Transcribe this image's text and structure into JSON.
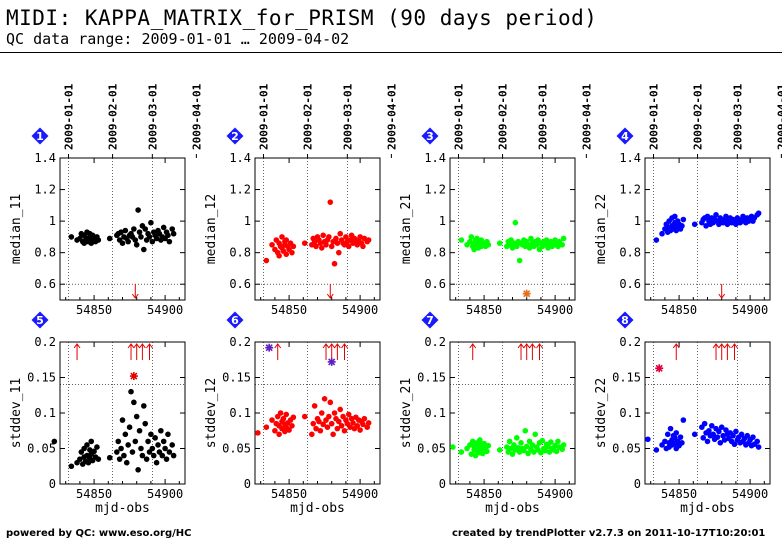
{
  "header": {
    "title": "MIDI: KAPPA_MATRIX_for_PRISM (90 days period)",
    "subtitle": "QC data range: 2009-01-01 … 2009-04-02"
  },
  "footer": {
    "left": "powered by QC: www.eso.org/HC",
    "right": "created by trendPlotter v2.7.3 on 2011-10-17T10:20:01"
  },
  "colors": {
    "black": "#000000",
    "red": "#ff0000",
    "green": "#00ff00",
    "blue": "#0000ff",
    "badge": "#1a1aff",
    "marker_red": "#e00000"
  },
  "chart_data": [
    {
      "type": "scatter",
      "panel": 1,
      "ylabel": "median_11",
      "color": "#000000",
      "ylim": [
        0.5,
        1.4
      ],
      "yticks": [
        0.6,
        0.8,
        1,
        1.2,
        1.4
      ],
      "hline": 0.6,
      "xticks": [
        54850,
        54900
      ],
      "date_ticks": [
        "2009-01-01",
        "2009-02-01",
        "2009-03-01",
        "2009-04-01"
      ],
      "x": [
        54834,
        54838,
        54840,
        54841,
        54842,
        54843,
        54843,
        54844,
        54845,
        54845,
        54846,
        54847,
        54847,
        54848,
        54848,
        54849,
        54850,
        54851,
        54852,
        54853,
        54861,
        54866,
        54867,
        54868,
        54869,
        54870,
        54871,
        54872,
        54873,
        54874,
        54875,
        54876,
        54877,
        54878,
        54879,
        54880,
        54881,
        54882,
        54883,
        54884,
        54885,
        54886,
        54887,
        54888,
        54889,
        54890,
        54891,
        54892,
        54893,
        54894,
        54895,
        54896,
        54897,
        54898,
        54899,
        54900,
        54901,
        54902,
        54903,
        54905,
        54906
      ],
      "y": [
        0.9,
        0.88,
        0.89,
        0.92,
        0.87,
        0.91,
        0.86,
        0.88,
        0.93,
        0.89,
        0.87,
        0.9,
        0.92,
        0.88,
        0.86,
        0.91,
        0.89,
        0.87,
        0.9,
        0.88,
        0.89,
        0.91,
        0.92,
        0.88,
        0.93,
        0.86,
        0.9,
        0.94,
        0.89,
        0.87,
        0.91,
        0.92,
        0.9,
        0.95,
        0.88,
        0.85,
        1.07,
        0.93,
        0.9,
        0.97,
        0.82,
        0.95,
        0.88,
        0.92,
        0.9,
        0.99,
        0.87,
        0.93,
        0.91,
        0.89,
        0.94,
        0.92,
        0.88,
        0.9,
        0.96,
        0.89,
        0.93,
        0.91,
        0.87,
        0.95,
        0.92
      ],
      "outliers_low": [
        54879
      ],
      "outlier_points": []
    },
    {
      "type": "scatter",
      "panel": 2,
      "ylabel": "median_12",
      "color": "#ff0000",
      "ylim": [
        0.5,
        1.4
      ],
      "yticks": [
        0.6,
        0.8,
        1,
        1.2,
        1.4
      ],
      "hline": 0.6,
      "xticks": [
        54850,
        54900
      ],
      "date_ticks": [
        "2009-01-01",
        "2009-02-01",
        "2009-03-01",
        "2009-04-01"
      ],
      "x": [
        54834,
        54838,
        54840,
        54841,
        54842,
        54843,
        54843,
        54844,
        54845,
        54845,
        54846,
        54847,
        54847,
        54848,
        54848,
        54849,
        54850,
        54851,
        54852,
        54853,
        54861,
        54866,
        54867,
        54868,
        54869,
        54870,
        54871,
        54872,
        54873,
        54874,
        54875,
        54876,
        54877,
        54878,
        54879,
        54880,
        54881,
        54882,
        54883,
        54884,
        54885,
        54886,
        54887,
        54888,
        54889,
        54890,
        54891,
        54892,
        54893,
        54894,
        54895,
        54896,
        54897,
        54898,
        54899,
        54900,
        54901,
        54902,
        54903,
        54905,
        54906
      ],
      "y": [
        0.75,
        0.85,
        0.82,
        0.88,
        0.8,
        0.86,
        0.78,
        0.84,
        0.9,
        0.83,
        0.81,
        0.87,
        0.85,
        0.79,
        0.88,
        0.84,
        0.82,
        0.86,
        0.8,
        0.84,
        0.86,
        0.85,
        0.89,
        0.87,
        0.84,
        0.9,
        0.88,
        0.86,
        0.83,
        0.91,
        0.87,
        0.85,
        0.88,
        0.9,
        1.12,
        0.84,
        0.87,
        0.73,
        0.89,
        0.86,
        0.8,
        0.92,
        0.88,
        0.86,
        0.85,
        0.9,
        0.87,
        0.84,
        0.88,
        0.91,
        0.86,
        0.89,
        0.87,
        0.85,
        0.88,
        0.9,
        0.86,
        0.84,
        0.89,
        0.87,
        0.88
      ],
      "outliers_low": [
        54879
      ],
      "outlier_points": []
    },
    {
      "type": "scatter",
      "panel": 3,
      "ylabel": "median_21",
      "color": "#00ff00",
      "ylim": [
        0.5,
        1.4
      ],
      "yticks": [
        0.6,
        0.8,
        1,
        1.2,
        1.4
      ],
      "hline": 0.6,
      "xticks": [
        54850,
        54900
      ],
      "date_ticks": [
        "2009-01-01",
        "2009-02-01",
        "2009-03-01",
        "2009-04-01"
      ],
      "x": [
        54834,
        54838,
        54840,
        54841,
        54842,
        54843,
        54843,
        54844,
        54845,
        54845,
        54846,
        54847,
        54847,
        54848,
        54848,
        54849,
        54850,
        54851,
        54852,
        54853,
        54861,
        54866,
        54867,
        54868,
        54869,
        54870,
        54871,
        54872,
        54873,
        54874,
        54875,
        54876,
        54877,
        54878,
        54879,
        54880,
        54881,
        54882,
        54883,
        54884,
        54885,
        54886,
        54887,
        54888,
        54889,
        54890,
        54891,
        54892,
        54893,
        54894,
        54895,
        54896,
        54897,
        54898,
        54899,
        54900,
        54901,
        54902,
        54903,
        54905,
        54906
      ],
      "y": [
        0.88,
        0.85,
        0.87,
        0.9,
        0.84,
        0.86,
        0.82,
        0.88,
        0.85,
        0.89,
        0.83,
        0.86,
        0.87,
        0.84,
        0.88,
        0.85,
        0.86,
        0.84,
        0.87,
        0.85,
        0.86,
        0.84,
        0.87,
        0.85,
        0.88,
        0.83,
        0.86,
        0.99,
        0.84,
        0.87,
        0.75,
        0.86,
        0.85,
        0.88,
        0.84,
        0.87,
        0.85,
        0.83,
        0.89,
        0.86,
        0.84,
        0.87,
        0.85,
        0.88,
        0.82,
        0.86,
        0.84,
        0.87,
        0.85,
        0.88,
        0.83,
        0.86,
        0.87,
        0.84,
        0.85,
        0.88,
        0.86,
        0.84,
        0.87,
        0.85,
        0.89
      ],
      "outliers_low": [],
      "outlier_points": [
        {
          "x": 54880,
          "y": 0.54,
          "color": "#e07020"
        }
      ]
    },
    {
      "type": "scatter",
      "panel": 4,
      "ylabel": "median_22",
      "color": "#0000ff",
      "ylim": [
        0.5,
        1.4
      ],
      "yticks": [
        0.6,
        0.8,
        1,
        1.2,
        1.4
      ],
      "hline": 0.6,
      "xticks": [
        54850,
        54900
      ],
      "date_ticks": [
        "2009-01-01",
        "2009-02-01",
        "2009-03-01",
        "2009-04-01"
      ],
      "x": [
        54834,
        54838,
        54840,
        54841,
        54842,
        54843,
        54843,
        54844,
        54845,
        54845,
        54846,
        54847,
        54847,
        54848,
        54848,
        54849,
        54850,
        54851,
        54852,
        54853,
        54861,
        54866,
        54867,
        54868,
        54869,
        54870,
        54871,
        54872,
        54873,
        54874,
        54875,
        54876,
        54877,
        54878,
        54879,
        54880,
        54881,
        54882,
        54883,
        54884,
        54885,
        54886,
        54887,
        54888,
        54889,
        54890,
        54891,
        54892,
        54893,
        54894,
        54895,
        54896,
        54897,
        54898,
        54899,
        54900,
        54901,
        54902,
        54903,
        54905,
        54906
      ],
      "y": [
        0.88,
        0.92,
        0.95,
        0.98,
        0.93,
        1.0,
        0.96,
        0.94,
        1.02,
        0.97,
        0.95,
        0.99,
        1.03,
        0.96,
        0.94,
        1.0,
        0.98,
        0.95,
        0.97,
        1.01,
        0.98,
        0.99,
        1.01,
        1.02,
        0.97,
        1.03,
        1.0,
        0.98,
        1.02,
        0.99,
        1.01,
        1.04,
        1.0,
        0.98,
        1.02,
        1.0,
        0.99,
        1.01,
        1.03,
        0.98,
        1.0,
        1.02,
        0.99,
        1.01,
        1.0,
        0.98,
        1.02,
        1.01,
        0.99,
        1.0,
        1.03,
        1.01,
        0.99,
        1.02,
        1.0,
        1.01,
        1.03,
        1.0,
        1.02,
        1.04,
        1.05
      ],
      "outliers_low": [
        54880
      ],
      "outlier_points": []
    },
    {
      "type": "scatter",
      "panel": 5,
      "ylabel": "stddev_11",
      "color": "#000000",
      "ylim": [
        0,
        0.2
      ],
      "yticks": [
        0,
        0.05,
        0.1,
        0.15,
        0.2
      ],
      "hline": 0.14,
      "xticks": [
        54850,
        54900
      ],
      "date_ticks": [],
      "x": [
        54822,
        54834,
        54838,
        54840,
        54841,
        54842,
        54843,
        54843,
        54844,
        54845,
        54845,
        54846,
        54847,
        54847,
        54848,
        54848,
        54849,
        54850,
        54851,
        54852,
        54853,
        54861,
        54866,
        54867,
        54868,
        54869,
        54870,
        54871,
        54872,
        54873,
        54874,
        54875,
        54876,
        54877,
        54878,
        54879,
        54880,
        54881,
        54882,
        54883,
        54884,
        54885,
        54886,
        54887,
        54888,
        54889,
        54890,
        54891,
        54892,
        54893,
        54894,
        54895,
        54896,
        54897,
        54898,
        54899,
        54900,
        54901,
        54902,
        54903,
        54905,
        54906
      ],
      "y": [
        0.06,
        0.025,
        0.03,
        0.035,
        0.045,
        0.028,
        0.05,
        0.038,
        0.032,
        0.055,
        0.04,
        0.03,
        0.048,
        0.036,
        0.06,
        0.042,
        0.033,
        0.046,
        0.038,
        0.052,
        0.035,
        0.037,
        0.045,
        0.06,
        0.035,
        0.05,
        0.09,
        0.04,
        0.07,
        0.03,
        0.055,
        0.08,
        0.13,
        0.045,
        0.115,
        0.06,
        0.095,
        0.02,
        0.075,
        0.05,
        0.04,
        0.11,
        0.085,
        0.035,
        0.06,
        0.045,
        0.07,
        0.05,
        0.04,
        0.065,
        0.03,
        0.055,
        0.045,
        0.075,
        0.04,
        0.06,
        0.05,
        0.035,
        0.07,
        0.045,
        0.055,
        0.04
      ],
      "outliers_high": [
        54838,
        54876,
        54880,
        54884,
        54889
      ],
      "outlier_points": [
        {
          "x": 54878,
          "y": 0.152,
          "color": "#e00000"
        }
      ]
    },
    {
      "type": "scatter",
      "panel": 6,
      "ylabel": "stddev_12",
      "color": "#ff0000",
      "ylim": [
        0,
        0.2
      ],
      "yticks": [
        0,
        0.05,
        0.1,
        0.15,
        0.2
      ],
      "hline": 0.14,
      "xticks": [
        54850,
        54900
      ],
      "date_ticks": [],
      "x": [
        54828,
        54834,
        54838,
        54840,
        54841,
        54842,
        54843,
        54843,
        54844,
        54845,
        54845,
        54846,
        54847,
        54847,
        54848,
        54848,
        54849,
        54850,
        54851,
        54852,
        54853,
        54861,
        54866,
        54867,
        54868,
        54869,
        54870,
        54871,
        54872,
        54873,
        54874,
        54875,
        54876,
        54877,
        54878,
        54879,
        54880,
        54881,
        54882,
        54883,
        54884,
        54885,
        54886,
        54887,
        54888,
        54889,
        54890,
        54891,
        54892,
        54893,
        54894,
        54895,
        54896,
        54897,
        54898,
        54899,
        54900,
        54901,
        54902,
        54903,
        54905,
        54906
      ],
      "y": [
        0.072,
        0.08,
        0.09,
        0.075,
        0.085,
        0.095,
        0.07,
        0.082,
        0.1,
        0.078,
        0.088,
        0.092,
        0.074,
        0.084,
        0.098,
        0.08,
        0.086,
        0.076,
        0.09,
        0.082,
        0.094,
        0.095,
        0.07,
        0.085,
        0.11,
        0.078,
        0.092,
        0.088,
        0.075,
        0.1,
        0.084,
        0.12,
        0.09,
        0.08,
        0.095,
        0.115,
        0.085,
        0.07,
        0.1,
        0.092,
        0.078,
        0.088,
        0.105,
        0.082,
        0.095,
        0.075,
        0.09,
        0.085,
        0.098,
        0.08,
        0.092,
        0.086,
        0.078,
        0.094,
        0.082,
        0.09,
        0.076,
        0.088,
        0.084,
        0.092,
        0.08,
        0.086
      ],
      "outliers_high": [
        54842,
        54876,
        54880,
        54884,
        54889
      ],
      "outlier_points": [
        {
          "x": 54836,
          "y": 0.192,
          "color": "#6020c0"
        },
        {
          "x": 54880,
          "y": 0.172,
          "color": "#6020c0"
        }
      ]
    },
    {
      "type": "scatter",
      "panel": 7,
      "ylabel": "stddev_21",
      "color": "#00ff00",
      "ylim": [
        0,
        0.2
      ],
      "yticks": [
        0,
        0.05,
        0.1,
        0.15,
        0.2
      ],
      "hline": 0.14,
      "xticks": [
        54850,
        54900
      ],
      "date_ticks": [],
      "x": [
        54828,
        54834,
        54838,
        54840,
        54841,
        54842,
        54843,
        54843,
        54844,
        54845,
        54845,
        54846,
        54847,
        54847,
        54848,
        54848,
        54849,
        54850,
        54851,
        54852,
        54853,
        54861,
        54866,
        54867,
        54868,
        54869,
        54870,
        54871,
        54872,
        54873,
        54874,
        54875,
        54876,
        54877,
        54878,
        54879,
        54880,
        54881,
        54882,
        54883,
        54884,
        54885,
        54886,
        54887,
        54888,
        54889,
        54890,
        54891,
        54892,
        54893,
        54894,
        54895,
        54896,
        54897,
        54898,
        54899,
        54900,
        54901,
        54902,
        54903,
        54905,
        54906
      ],
      "y": [
        0.052,
        0.045,
        0.05,
        0.055,
        0.042,
        0.06,
        0.048,
        0.053,
        0.04,
        0.058,
        0.046,
        0.051,
        0.044,
        0.062,
        0.049,
        0.055,
        0.043,
        0.057,
        0.05,
        0.046,
        0.054,
        0.048,
        0.052,
        0.045,
        0.06,
        0.05,
        0.042,
        0.055,
        0.048,
        0.065,
        0.051,
        0.045,
        0.058,
        0.05,
        0.047,
        0.075,
        0.053,
        0.043,
        0.06,
        0.049,
        0.055,
        0.045,
        0.07,
        0.052,
        0.048,
        0.058,
        0.044,
        0.061,
        0.05,
        0.047,
        0.056,
        0.053,
        0.045,
        0.059,
        0.05,
        0.048,
        0.054,
        0.046,
        0.06,
        0.052,
        0.049,
        0.055
      ],
      "outliers_high": [
        54842,
        54876,
        54880,
        54884,
        54889
      ],
      "outlier_points": []
    },
    {
      "type": "scatter",
      "panel": 8,
      "ylabel": "stddev_22",
      "color": "#0000ff",
      "ylim": [
        0,
        0.2
      ],
      "yticks": [
        0,
        0.05,
        0.1,
        0.15,
        0.2
      ],
      "hline": 0.14,
      "xticks": [
        54850,
        54900
      ],
      "date_ticks": [],
      "x": [
        54828,
        54834,
        54838,
        54840,
        54841,
        54842,
        54843,
        54843,
        54844,
        54845,
        54845,
        54846,
        54847,
        54847,
        54848,
        54848,
        54849,
        54850,
        54851,
        54852,
        54853,
        54861,
        54866,
        54867,
        54868,
        54869,
        54870,
        54871,
        54872,
        54873,
        54874,
        54875,
        54876,
        54877,
        54878,
        54879,
        54880,
        54881,
        54882,
        54883,
        54884,
        54885,
        54886,
        54887,
        54888,
        54889,
        54890,
        54891,
        54892,
        54893,
        54894,
        54895,
        54896,
        54897,
        54898,
        54899,
        54900,
        54901,
        54902,
        54903,
        54905,
        54906
      ],
      "y": [
        0.063,
        0.048,
        0.055,
        0.06,
        0.05,
        0.07,
        0.058,
        0.052,
        0.078,
        0.062,
        0.055,
        0.068,
        0.057,
        0.065,
        0.05,
        0.072,
        0.06,
        0.054,
        0.066,
        0.058,
        0.09,
        0.07,
        0.08,
        0.065,
        0.085,
        0.072,
        0.06,
        0.075,
        0.068,
        0.082,
        0.07,
        0.063,
        0.078,
        0.066,
        0.074,
        0.058,
        0.08,
        0.068,
        0.062,
        0.076,
        0.07,
        0.064,
        0.072,
        0.06,
        0.068,
        0.056,
        0.074,
        0.062,
        0.066,
        0.058,
        0.07,
        0.06,
        0.064,
        0.055,
        0.068,
        0.058,
        0.062,
        0.054,
        0.066,
        0.056,
        0.06,
        0.052
      ],
      "outliers_high": [
        54848,
        54876,
        54880,
        54884,
        54889
      ],
      "outlier_points": [
        {
          "x": 54836,
          "y": 0.163,
          "color": "#e00040"
        }
      ]
    }
  ]
}
